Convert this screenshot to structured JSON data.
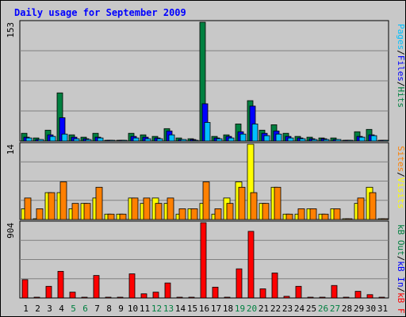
{
  "chart_data": [
    {
      "type": "bar",
      "panel": "hits-files-pages",
      "title": "Daily usage for September 2009",
      "ymax_label": "153",
      "ylim": [
        0,
        153
      ],
      "grid": true,
      "categories": [
        "1",
        "2",
        "3",
        "4",
        "5",
        "6",
        "7",
        "8",
        "9",
        "10",
        "11",
        "12",
        "13",
        "14",
        "15",
        "16",
        "17",
        "18",
        "19",
        "20",
        "21",
        "22",
        "23",
        "24",
        "25",
        "26",
        "27",
        "28",
        "29",
        "30",
        "31"
      ],
      "series": [
        {
          "name": "Hits",
          "color": "#008040",
          "values": [
            10,
            4,
            14,
            62,
            8,
            5,
            10,
            1,
            1,
            10,
            8,
            6,
            16,
            4,
            3,
            153,
            6,
            8,
            22,
            52,
            14,
            21,
            10,
            6,
            5,
            4,
            4,
            0,
            12,
            15,
            0
          ]
        },
        {
          "name": "Files",
          "color": "#0000ff",
          "values": [
            5,
            2,
            8,
            30,
            5,
            3,
            5,
            0,
            0,
            6,
            5,
            4,
            13,
            2,
            2,
            48,
            4,
            6,
            12,
            45,
            10,
            13,
            6,
            4,
            3,
            3,
            2,
            0,
            6,
            8,
            0
          ]
        },
        {
          "name": "Pages",
          "color": "#00c0ff",
          "values": [
            4,
            2,
            6,
            9,
            3,
            2,
            4,
            0,
            0,
            4,
            3,
            3,
            8,
            2,
            1,
            24,
            3,
            4,
            9,
            22,
            7,
            9,
            4,
            3,
            2,
            2,
            2,
            0,
            5,
            7,
            0
          ]
        }
      ],
      "legend": {
        "position": "right",
        "separator": "/"
      }
    },
    {
      "type": "bar",
      "panel": "visits-sites",
      "ymax_label": "14",
      "ylim": [
        0,
        14
      ],
      "grid": true,
      "series": [
        {
          "name": "Visits",
          "color": "#ffff00",
          "values": [
            2,
            0,
            5,
            5,
            2,
            3,
            4,
            1,
            1,
            4,
            3,
            4,
            3,
            1,
            2,
            3,
            1,
            4,
            7,
            14,
            3,
            6,
            1,
            1,
            2,
            1,
            2,
            0,
            3,
            6,
            0
          ]
        },
        {
          "name": "Sites",
          "color": "#ff8000",
          "values": [
            4,
            2,
            5,
            7,
            3,
            3,
            6,
            1,
            1,
            4,
            4,
            3,
            4,
            2,
            2,
            7,
            2,
            3,
            6,
            5,
            3,
            6,
            1,
            2,
            2,
            1,
            2,
            0,
            4,
            5,
            0
          ]
        }
      ],
      "legend": {
        "position": "right",
        "separator": "/"
      }
    },
    {
      "type": "bar",
      "panel": "kbytes",
      "ymax_label": "904",
      "ylim": [
        0,
        904
      ],
      "grid": true,
      "series": [
        {
          "name": "kB F",
          "color": "#ff0000",
          "values": [
            220,
            0,
            140,
            320,
            70,
            0,
            270,
            0,
            0,
            290,
            50,
            70,
            180,
            0,
            0,
            904,
            130,
            0,
            350,
            800,
            110,
            300,
            20,
            140,
            0,
            0,
            150,
            0,
            80,
            40,
            0
          ]
        },
        {
          "name": "kB In",
          "color": "#0000ff",
          "values": [
            0,
            0,
            0,
            0,
            0,
            0,
            0,
            0,
            0,
            0,
            0,
            0,
            0,
            0,
            0,
            0,
            0,
            0,
            0,
            0,
            0,
            0,
            0,
            0,
            0,
            0,
            0,
            0,
            0,
            0,
            0
          ]
        },
        {
          "name": "kB Out",
          "color": "#008040",
          "values": [
            0,
            0,
            0,
            0,
            0,
            0,
            0,
            0,
            0,
            0,
            0,
            0,
            0,
            0,
            0,
            0,
            0,
            0,
            0,
            0,
            0,
            0,
            0,
            0,
            0,
            0,
            0,
            0,
            0,
            0,
            0
          ]
        }
      ],
      "legend": {
        "position": "right",
        "separator": "/"
      }
    }
  ],
  "weekend_days": [
    "5",
    "6",
    "12",
    "13",
    "19",
    "20",
    "26",
    "27"
  ],
  "colors": {
    "background": "#c8c8c8",
    "plot": "#c8c8c8",
    "grid": "#808080",
    "weekday_label": "#000000",
    "weekend_label": "#008040",
    "title": "#0000ff"
  }
}
